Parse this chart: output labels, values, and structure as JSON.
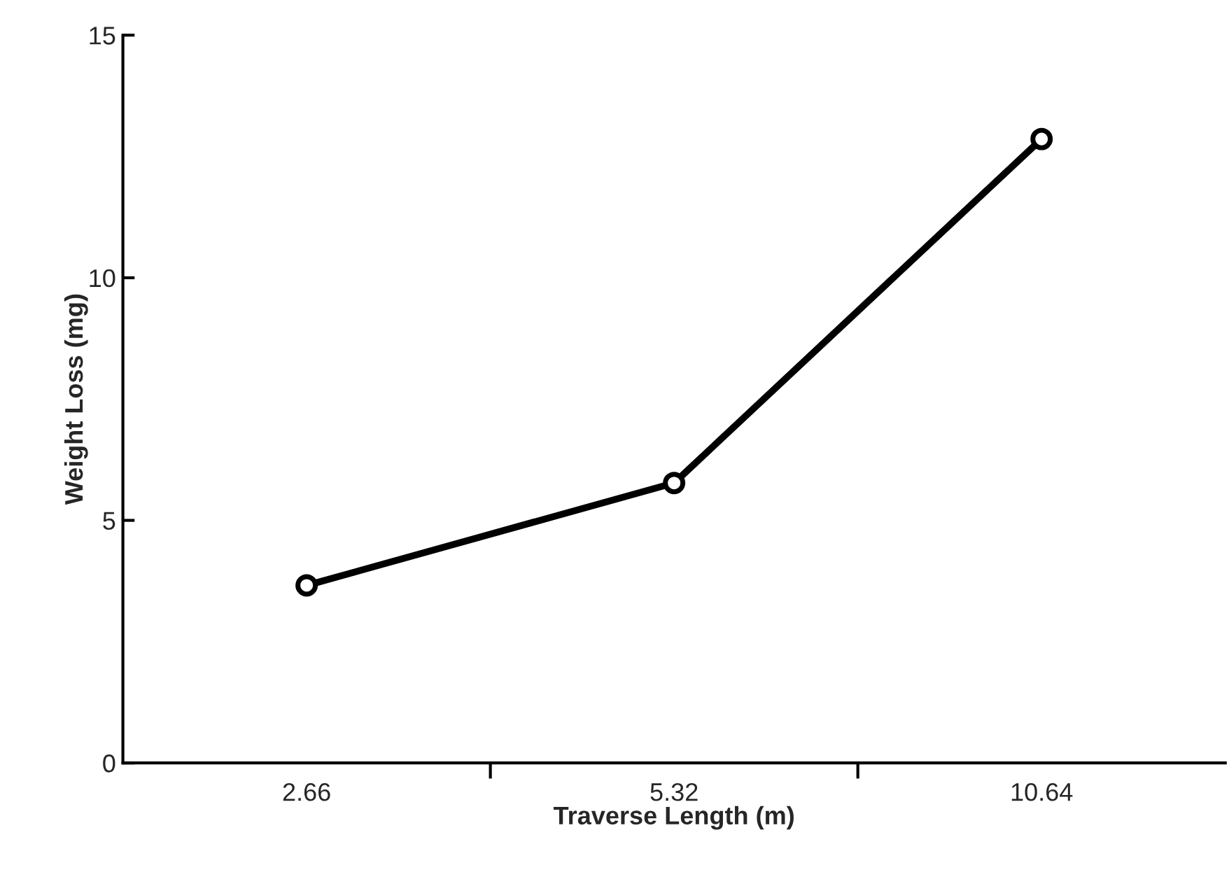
{
  "chart_data": {
    "type": "line",
    "xlabel": "Traverse Length (m)",
    "ylabel": "Weight Loss (mg)",
    "categories": [
      "2.66",
      "5.32",
      "10.64"
    ],
    "series": [
      {
        "color": "#000000",
        "values": [
          3.66,
          5.77,
          12.86
        ]
      }
    ],
    "ylim": [
      0,
      15
    ],
    "yticks": [
      0,
      5,
      10,
      15
    ],
    "marker": "circle",
    "line_style": "solid",
    "grid": false,
    "legend": false
  }
}
